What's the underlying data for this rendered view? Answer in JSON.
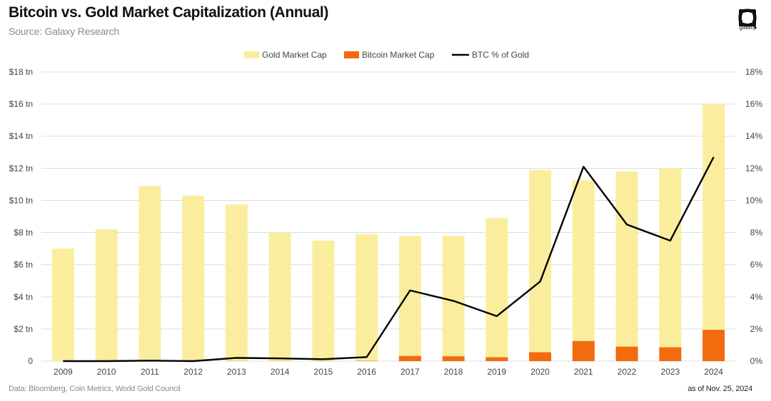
{
  "header": {
    "title": "Bitcoin vs. Gold Market Capitalization (Annual)",
    "subtitle": "Source: Galaxy Research",
    "logo_label": "galaxy"
  },
  "footer": {
    "source": "Data: Bloomberg, Coin Metrics, World Gold Council",
    "date": "as of Nov. 25, 2024"
  },
  "colors": {
    "gold": "#FAEE9E",
    "bitcoin": "#F26B0F",
    "ratio": "#000000",
    "grid": "#DDDDDD"
  },
  "chart_data": {
    "type": "bar",
    "categories": [
      "2009",
      "2010",
      "2011",
      "2012",
      "2013",
      "2014",
      "2015",
      "2016",
      "2017",
      "2018",
      "2019",
      "2020",
      "2021",
      "2022",
      "2023",
      "2024"
    ],
    "series": [
      {
        "name": "Gold Market Cap",
        "type": "bar",
        "axis": "left",
        "color": "#FAEE9E",
        "values": [
          7.0,
          8.2,
          10.9,
          10.3,
          9.75,
          8.0,
          7.5,
          7.9,
          7.8,
          7.8,
          8.9,
          11.9,
          11.25,
          11.8,
          12.0,
          16.0
        ]
      },
      {
        "name": "Bitcoin Market Cap",
        "type": "bar",
        "axis": "left",
        "color": "#F26B0F",
        "values": [
          0,
          0,
          0,
          0,
          0.01,
          0.01,
          0.01,
          0.02,
          0.32,
          0.3,
          0.24,
          0.55,
          1.25,
          0.9,
          0.86,
          1.95
        ]
      },
      {
        "name": "BTC % of Gold",
        "type": "line",
        "axis": "right",
        "color": "#000000",
        "values": [
          0.0,
          0.0,
          0.03,
          0.0,
          0.2,
          0.17,
          0.12,
          0.25,
          4.4,
          3.75,
          2.8,
          4.95,
          12.1,
          8.5,
          7.5,
          12.7
        ]
      }
    ],
    "yleft": {
      "min": 0,
      "max": 18,
      "ticks": [
        {
          "value": 0,
          "label": "0"
        },
        {
          "value": 2,
          "label": "$2 tn"
        },
        {
          "value": 4,
          "label": "$4 tn"
        },
        {
          "value": 6,
          "label": "$6 tn"
        },
        {
          "value": 8,
          "label": "$8 tn"
        },
        {
          "value": 10,
          "label": "$10 tn"
        },
        {
          "value": 12,
          "label": "$12 tn"
        },
        {
          "value": 14,
          "label": "$14 tn"
        },
        {
          "value": 16,
          "label": "$16 tn"
        },
        {
          "value": 18,
          "label": "$18 tn"
        }
      ]
    },
    "yright": {
      "min": 0,
      "max": 18,
      "ticks": [
        {
          "value": 0,
          "label": "0%"
        },
        {
          "value": 2,
          "label": "2%"
        },
        {
          "value": 4,
          "label": "4%"
        },
        {
          "value": 6,
          "label": "6%"
        },
        {
          "value": 8,
          "label": "8%"
        },
        {
          "value": 10,
          "label": "10%"
        },
        {
          "value": 12,
          "label": "12%"
        },
        {
          "value": 14,
          "label": "14%"
        },
        {
          "value": 16,
          "label": "16%"
        },
        {
          "value": 18,
          "label": "18%"
        }
      ]
    },
    "grid": true,
    "legend_position": "top-center"
  }
}
